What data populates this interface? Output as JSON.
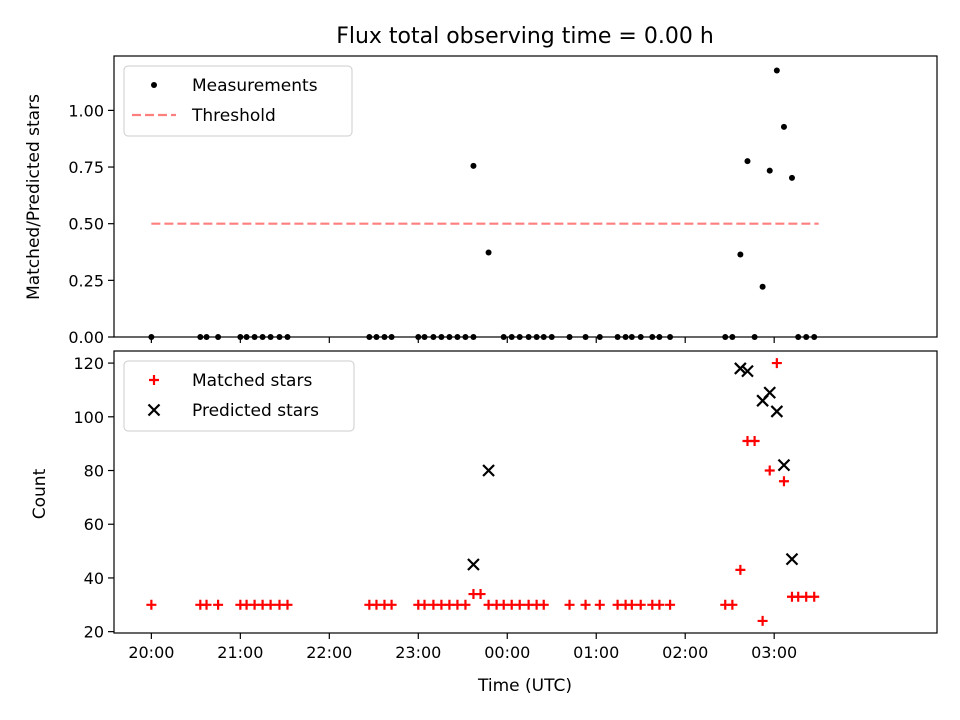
{
  "chart_data": [
    {
      "type": "scatter",
      "title": "Flux total observing time = 0.00 h",
      "xlabel": "",
      "ylabel": "Matched/Predicted stars",
      "xlim": [
        -0.42,
        8.83
      ],
      "ylim": [
        0,
        1.24
      ],
      "yticks": [
        0,
        0.25,
        0.5,
        0.75,
        1.0
      ],
      "ytick_labels": [
        "0.00",
        "0.25",
        "0.50",
        "0.75",
        "1.00"
      ],
      "legend_position": "upper-left",
      "series": [
        {
          "name": "Measurements",
          "marker": "dot",
          "color": "#000000",
          "x": [
            0,
            0.55,
            0.62,
            0.75,
            1.0,
            1.07,
            1.16,
            1.25,
            1.34,
            1.44,
            1.53,
            2.45,
            2.53,
            2.62,
            2.7,
            3.0,
            3.07,
            3.17,
            3.26,
            3.35,
            3.44,
            3.53,
            3.62,
            3.62,
            3.79,
            3.96,
            4.05,
            4.14,
            4.24,
            4.33,
            4.41,
            4.5,
            4.7,
            4.88,
            5.04,
            5.24,
            5.33,
            5.4,
            5.5,
            5.63,
            5.71,
            5.83,
            6.45,
            6.53,
            6.62,
            6.7,
            6.78,
            6.87,
            6.95,
            7.03,
            7.11,
            7.2,
            7.27,
            7.36,
            7.45
          ],
          "y": [
            0,
            0,
            0,
            0,
            0,
            0,
            0,
            0,
            0,
            0,
            0,
            0,
            0,
            0,
            0,
            0,
            0,
            0,
            0,
            0,
            0,
            0,
            0,
            0.755,
            0.373,
            0,
            0,
            0,
            0,
            0,
            0,
            0,
            0,
            0,
            0,
            0,
            0,
            0,
            0,
            0,
            0,
            0,
            0,
            0,
            0.364,
            0.776,
            0,
            0.222,
            0.734,
            1.176,
            0.927,
            0.702,
            0,
            0,
            0
          ]
        },
        {
          "name": "Threshold",
          "style": "dashed",
          "color": "#ff7f7f",
          "x": [
            0,
            7.5
          ],
          "y": [
            0.5,
            0.5
          ]
        }
      ]
    },
    {
      "type": "scatter",
      "title": "",
      "xlabel": "Time (UTC)",
      "ylabel": "Count",
      "xlim": [
        -0.42,
        8.83
      ],
      "ylim": [
        19.5,
        124.5
      ],
      "yticks": [
        20,
        40,
        60,
        80,
        100,
        120
      ],
      "ytick_labels": [
        "20",
        "40",
        "60",
        "80",
        "100",
        "120"
      ],
      "xticks": [
        0,
        1,
        2,
        3,
        4,
        5,
        6,
        7
      ],
      "xtick_labels": [
        "20:00",
        "21:00",
        "22:00",
        "23:00",
        "00:00",
        "01:00",
        "02:00",
        "03:00"
      ],
      "legend_position": "upper-left",
      "series": [
        {
          "name": "Matched stars",
          "marker": "plus",
          "color": "#ff0000",
          "x": [
            0,
            0.55,
            0.62,
            0.75,
            1.0,
            1.07,
            1.16,
            1.25,
            1.34,
            1.44,
            1.53,
            2.45,
            2.53,
            2.62,
            2.7,
            3.0,
            3.07,
            3.17,
            3.26,
            3.35,
            3.44,
            3.53,
            3.62,
            3.7,
            3.79,
            3.88,
            3.96,
            4.05,
            4.14,
            4.24,
            4.33,
            4.41,
            4.7,
            4.88,
            5.04,
            5.24,
            5.33,
            5.4,
            5.5,
            5.63,
            5.71,
            5.83,
            6.45,
            6.53,
            6.62,
            6.7,
            6.78,
            6.87,
            6.95,
            7.03,
            7.11,
            7.2,
            7.27,
            7.36,
            7.45
          ],
          "y": [
            30,
            30,
            30,
            30,
            30,
            30,
            30,
            30,
            30,
            30,
            30,
            30,
            30,
            30,
            30,
            30,
            30,
            30,
            30,
            30,
            30,
            30,
            34,
            34,
            30,
            30,
            30,
            30,
            30,
            30,
            30,
            30,
            30,
            30,
            30,
            30,
            30,
            30,
            30,
            30,
            30,
            30,
            30,
            30,
            43,
            91,
            91,
            24,
            80,
            120,
            76,
            33,
            33,
            33,
            33
          ]
        },
        {
          "name": "Predicted stars",
          "marker": "x",
          "color": "#000000",
          "x": [
            3.62,
            3.79,
            6.62,
            6.7,
            6.87,
            6.95,
            7.03,
            7.11,
            7.2
          ],
          "y": [
            45,
            80,
            118,
            117,
            106,
            109,
            102,
            82,
            47
          ]
        }
      ]
    }
  ]
}
